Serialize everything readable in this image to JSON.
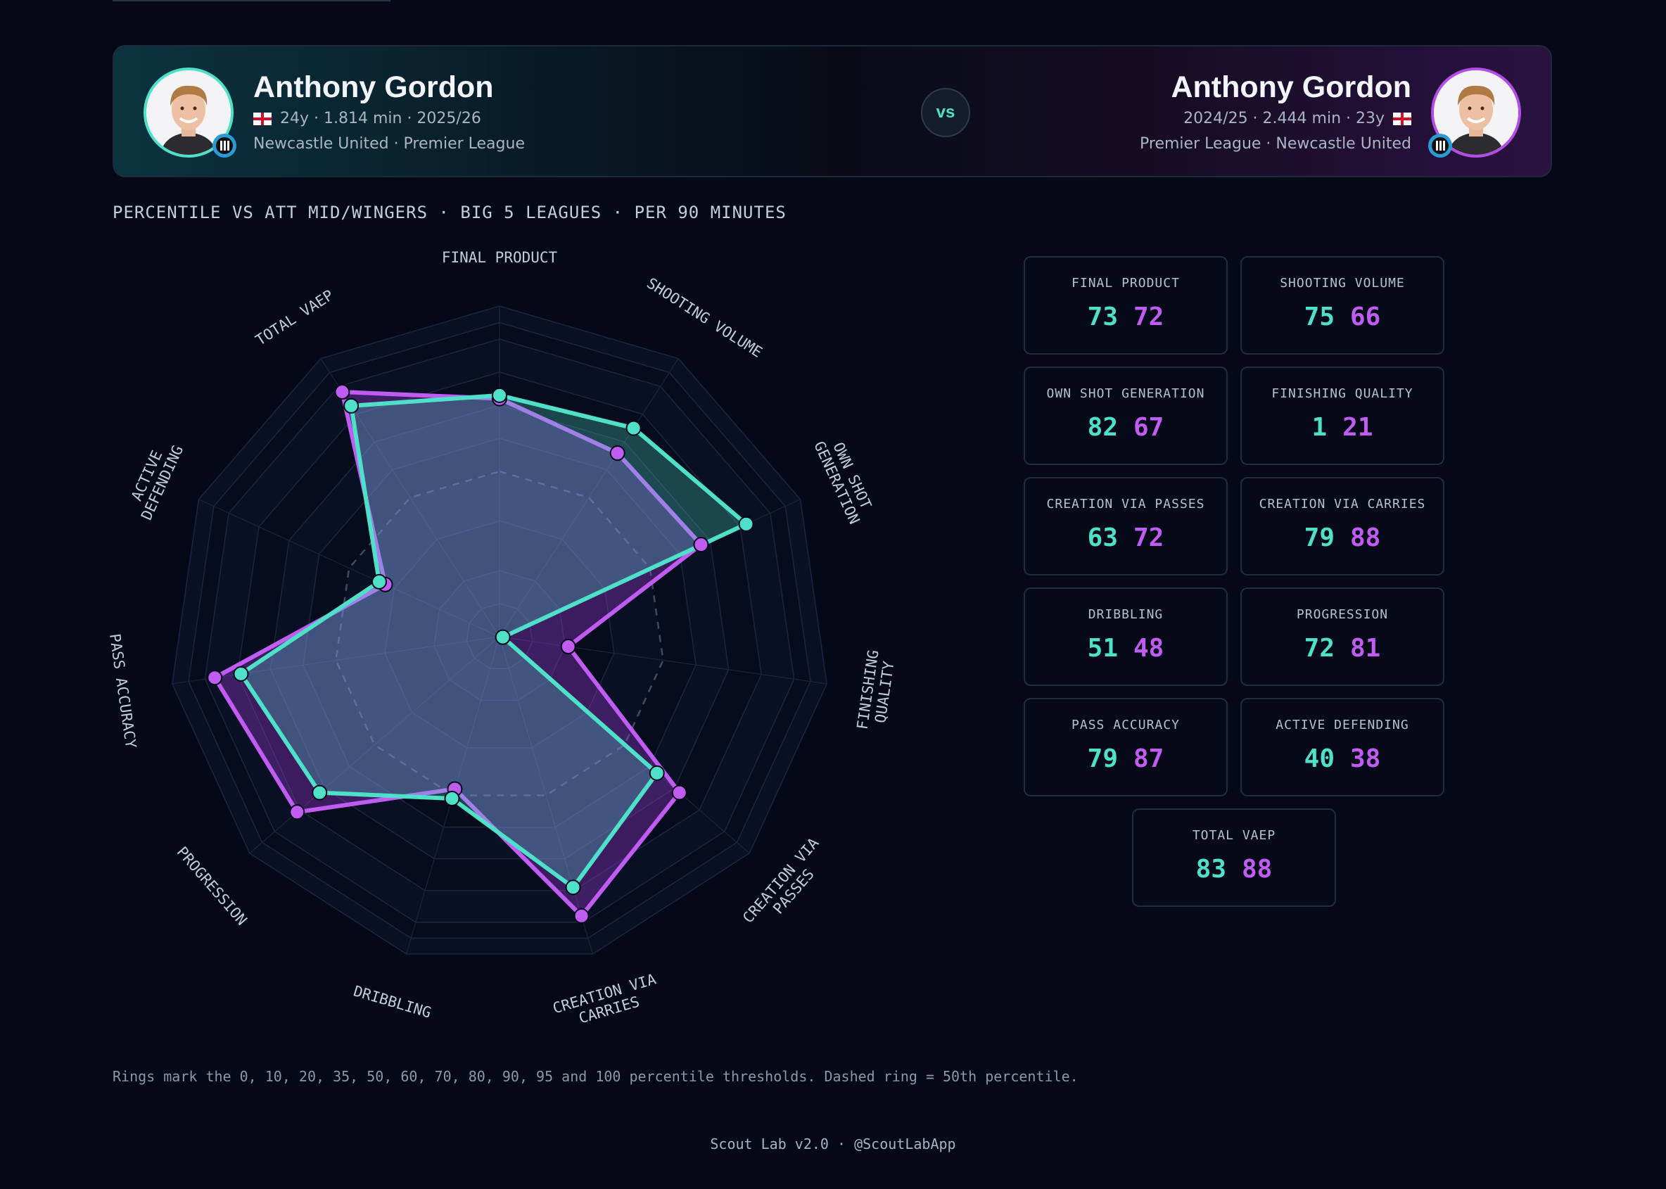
{
  "player_left": {
    "name": "Anthony Gordon",
    "meta": "24y · 1.814 min · 2025/26",
    "club": "Newcastle United · Premier League",
    "color": "#4ee0c8"
  },
  "player_right": {
    "name": "Anthony Gordon",
    "meta": "2024/25 · 2.444 min · 23y",
    "club": "Premier League · Newcastle United",
    "color": "#c05cf2"
  },
  "vs_label": "vs",
  "subtitle": "PERCENTILE VS ATT MID/WINGERS · BIG 5 LEAGUES · PER 90 MINUTES",
  "chart_data": {
    "type": "radar",
    "axes": [
      [
        "FINAL PRODUCT"
      ],
      [
        "SHOOTING VOLUME"
      ],
      [
        "OWN SHOT",
        "GENERATION"
      ],
      [
        "FINISHING",
        "QUALITY"
      ],
      [
        "CREATION VIA",
        "PASSES"
      ],
      [
        "CREATION VIA",
        "CARRIES"
      ],
      [
        "DRIBBLING"
      ],
      [
        "PROGRESSION"
      ],
      [
        "PASS ACCURACY"
      ],
      [
        "ACTIVE",
        "DEFENDING"
      ],
      [
        "TOTAL VAEP"
      ]
    ],
    "ring_thresholds": [
      0,
      10,
      20,
      35,
      50,
      60,
      70,
      80,
      90,
      95,
      100
    ],
    "dashed_ring": 50,
    "rlim": [
      0,
      100
    ],
    "series": [
      {
        "values": [
          73,
          75,
          82,
          1,
          63,
          79,
          51,
          72,
          79,
          40,
          83
        ],
        "color": "#4ee0c8"
      },
      {
        "values": [
          72,
          66,
          67,
          21,
          72,
          88,
          48,
          81,
          87,
          38,
          88
        ],
        "color": "#c05cf2"
      }
    ]
  },
  "cards": [
    {
      "label": "FINAL PRODUCT",
      "v1": "73",
      "v2": "72"
    },
    {
      "label": "SHOOTING VOLUME",
      "v1": "75",
      "v2": "66"
    },
    {
      "label": "OWN SHOT GENERATION",
      "v1": "82",
      "v2": "67"
    },
    {
      "label": "FINISHING QUALITY",
      "v1": "1",
      "v2": "21"
    },
    {
      "label": "CREATION VIA PASSES",
      "v1": "63",
      "v2": "72"
    },
    {
      "label": "CREATION VIA CARRIES",
      "v1": "79",
      "v2": "88"
    },
    {
      "label": "DRIBBLING",
      "v1": "51",
      "v2": "48"
    },
    {
      "label": "PROGRESSION",
      "v1": "72",
      "v2": "81"
    },
    {
      "label": "PASS ACCURACY",
      "v1": "79",
      "v2": "87"
    },
    {
      "label": "ACTIVE DEFENDING",
      "v1": "40",
      "v2": "38"
    },
    {
      "label": "TOTAL VAEP",
      "v1": "83",
      "v2": "88"
    }
  ],
  "footnote": "Rings mark the 0, 10, 20, 35, 50, 60, 70, 80, 90, 95 and 100 percentile thresholds. Dashed ring = 50th percentile.",
  "credit": "Scout Lab v2.0 · @ScoutLabApp"
}
